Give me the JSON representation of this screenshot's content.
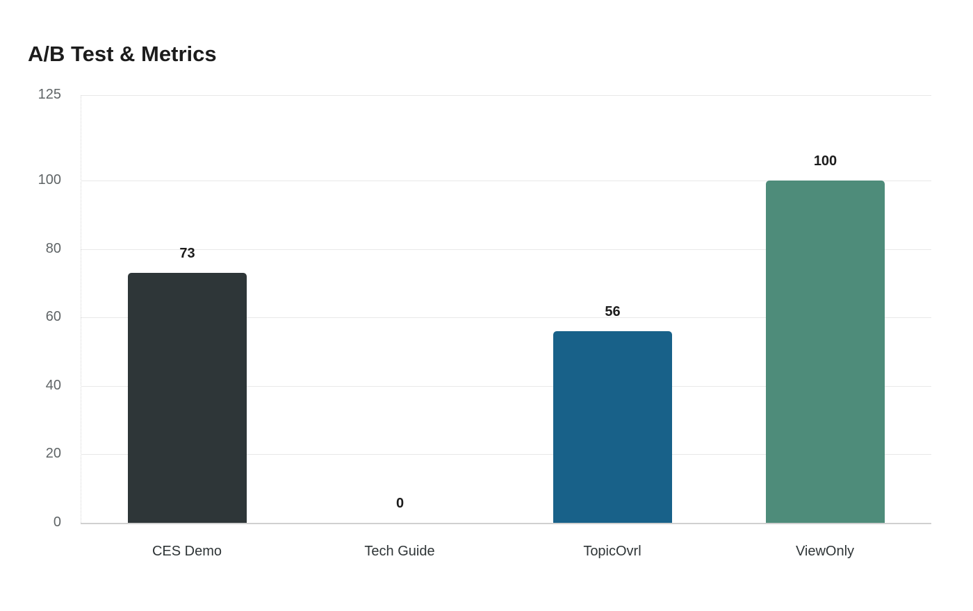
{
  "title": "A/B Test & Metrics",
  "chart_data": {
    "type": "bar",
    "title": "A/B Test & Metrics",
    "xlabel": "",
    "ylabel": "",
    "categories": [
      "CES Demo",
      "Tech Guide",
      "TopicOvrl",
      "ViewOnly"
    ],
    "values": [
      73,
      0,
      56,
      100
    ],
    "value_labels": [
      "73",
      "0",
      "56",
      "100"
    ],
    "colors": [
      "#2e3638",
      "#2e3638",
      "#186189",
      "#4e8c7a"
    ],
    "ylim": [
      0,
      125
    ],
    "yticks": [
      0,
      20,
      40,
      60,
      80,
      100,
      125
    ],
    "ytick_labels": [
      "0",
      "20",
      "40",
      "60",
      "80",
      "100",
      "125"
    ],
    "grid": true,
    "legend": null
  }
}
